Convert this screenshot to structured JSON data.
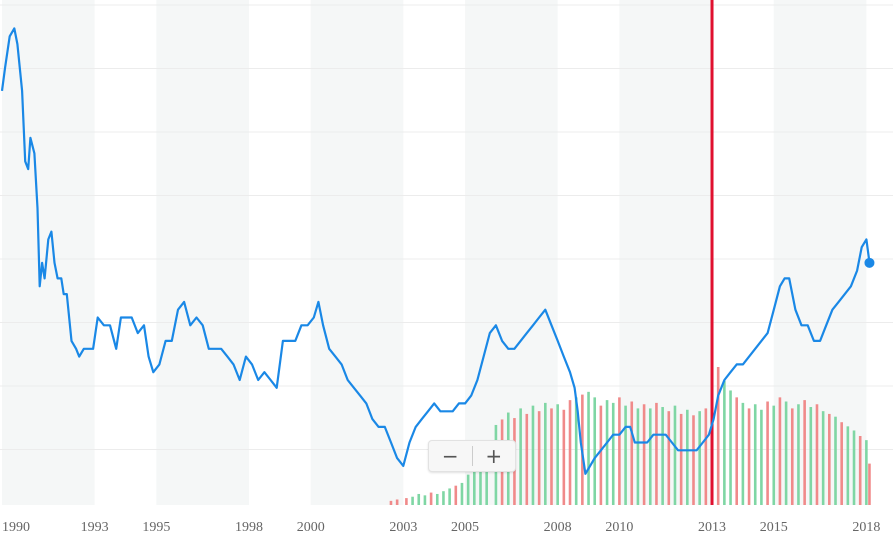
{
  "chart_data": {
    "type": "line",
    "x_ticks": [
      "1990",
      "1993",
      "1995",
      "1998",
      "2000",
      "2003",
      "2005",
      "2008",
      "2010",
      "2013",
      "2015",
      "2018"
    ],
    "series": [
      {
        "values": [
          [
            1990.0,
            81
          ],
          [
            1990.1,
            84
          ],
          [
            1990.25,
            88
          ],
          [
            1990.4,
            89
          ],
          [
            1990.5,
            87
          ],
          [
            1990.65,
            81
          ],
          [
            1990.75,
            72
          ],
          [
            1990.85,
            71
          ],
          [
            1990.92,
            75
          ],
          [
            1991.05,
            73
          ],
          [
            1991.15,
            66
          ],
          [
            1991.22,
            56
          ],
          [
            1991.3,
            59
          ],
          [
            1991.38,
            57
          ],
          [
            1991.5,
            62
          ],
          [
            1991.6,
            63
          ],
          [
            1991.7,
            59
          ],
          [
            1991.8,
            57
          ],
          [
            1991.92,
            57
          ],
          [
            1992.0,
            55
          ],
          [
            1992.1,
            55
          ],
          [
            1992.25,
            49
          ],
          [
            1992.4,
            48
          ],
          [
            1992.5,
            47
          ],
          [
            1992.65,
            48
          ],
          [
            1992.8,
            48
          ],
          [
            1992.95,
            48
          ],
          [
            1993.1,
            52
          ],
          [
            1993.3,
            51
          ],
          [
            1993.5,
            51
          ],
          [
            1993.7,
            48
          ],
          [
            1993.85,
            52
          ],
          [
            1994.0,
            52
          ],
          [
            1994.2,
            52
          ],
          [
            1994.4,
            50
          ],
          [
            1994.6,
            51
          ],
          [
            1994.75,
            47
          ],
          [
            1994.9,
            45
          ],
          [
            1995.1,
            46
          ],
          [
            1995.3,
            49
          ],
          [
            1995.5,
            49
          ],
          [
            1995.7,
            53
          ],
          [
            1995.9,
            54
          ],
          [
            1996.1,
            51
          ],
          [
            1996.3,
            52
          ],
          [
            1996.5,
            51
          ],
          [
            1996.7,
            48
          ],
          [
            1996.9,
            48
          ],
          [
            1997.1,
            48
          ],
          [
            1997.3,
            47
          ],
          [
            1997.5,
            46
          ],
          [
            1997.7,
            44
          ],
          [
            1997.9,
            47
          ],
          [
            1998.1,
            46
          ],
          [
            1998.3,
            44
          ],
          [
            1998.5,
            45
          ],
          [
            1998.7,
            44
          ],
          [
            1998.9,
            43
          ],
          [
            1999.1,
            49
          ],
          [
            1999.3,
            49
          ],
          [
            1999.5,
            49
          ],
          [
            1999.7,
            51
          ],
          [
            1999.9,
            51
          ],
          [
            2000.1,
            52
          ],
          [
            2000.25,
            54
          ],
          [
            2000.4,
            51
          ],
          [
            2000.6,
            48
          ],
          [
            2000.8,
            47
          ],
          [
            2001.0,
            46
          ],
          [
            2001.2,
            44
          ],
          [
            2001.4,
            43
          ],
          [
            2001.6,
            42
          ],
          [
            2001.8,
            41
          ],
          [
            2002.0,
            39
          ],
          [
            2002.2,
            38
          ],
          [
            2002.4,
            38
          ],
          [
            2002.6,
            36
          ],
          [
            2002.8,
            34
          ],
          [
            2003.0,
            33
          ],
          [
            2003.2,
            36
          ],
          [
            2003.4,
            38
          ],
          [
            2003.6,
            39
          ],
          [
            2003.8,
            40
          ],
          [
            2004.0,
            41
          ],
          [
            2004.2,
            40
          ],
          [
            2004.4,
            40
          ],
          [
            2004.6,
            40
          ],
          [
            2004.8,
            41
          ],
          [
            2005.0,
            41
          ],
          [
            2005.2,
            42
          ],
          [
            2005.4,
            44
          ],
          [
            2005.6,
            47
          ],
          [
            2005.8,
            50
          ],
          [
            2006.0,
            51
          ],
          [
            2006.2,
            49
          ],
          [
            2006.4,
            48
          ],
          [
            2006.6,
            48
          ],
          [
            2006.8,
            49
          ],
          [
            2007.0,
            50
          ],
          [
            2007.2,
            51
          ],
          [
            2007.4,
            52
          ],
          [
            2007.6,
            53
          ],
          [
            2007.8,
            51
          ],
          [
            2008.0,
            49
          ],
          [
            2008.2,
            47
          ],
          [
            2008.4,
            45
          ],
          [
            2008.55,
            43
          ],
          [
            2008.65,
            40
          ],
          [
            2008.75,
            36
          ],
          [
            2008.9,
            32
          ],
          [
            2009.05,
            33
          ],
          [
            2009.2,
            34
          ],
          [
            2009.4,
            35
          ],
          [
            2009.6,
            36
          ],
          [
            2009.8,
            37
          ],
          [
            2010.0,
            37
          ],
          [
            2010.2,
            38
          ],
          [
            2010.35,
            38
          ],
          [
            2010.5,
            36
          ],
          [
            2010.7,
            36
          ],
          [
            2010.9,
            36
          ],
          [
            2011.1,
            37
          ],
          [
            2011.3,
            37
          ],
          [
            2011.5,
            37
          ],
          [
            2011.7,
            36
          ],
          [
            2011.9,
            35
          ],
          [
            2012.1,
            35
          ],
          [
            2012.3,
            35
          ],
          [
            2012.5,
            35
          ],
          [
            2012.7,
            36
          ],
          [
            2012.9,
            37
          ],
          [
            2013.05,
            39
          ],
          [
            2013.2,
            42
          ],
          [
            2013.4,
            44
          ],
          [
            2013.6,
            45
          ],
          [
            2013.8,
            46
          ],
          [
            2014.0,
            46
          ],
          [
            2014.2,
            47
          ],
          [
            2014.4,
            48
          ],
          [
            2014.6,
            49
          ],
          [
            2014.8,
            50
          ],
          [
            2015.0,
            53
          ],
          [
            2015.2,
            56
          ],
          [
            2015.35,
            57
          ],
          [
            2015.5,
            57
          ],
          [
            2015.7,
            53
          ],
          [
            2015.9,
            51
          ],
          [
            2016.1,
            51
          ],
          [
            2016.3,
            49
          ],
          [
            2016.5,
            49
          ],
          [
            2016.7,
            51
          ],
          [
            2016.9,
            53
          ],
          [
            2017.1,
            54
          ],
          [
            2017.3,
            55
          ],
          [
            2017.5,
            56
          ],
          [
            2017.7,
            58
          ],
          [
            2017.85,
            61
          ],
          [
            2018.0,
            62
          ],
          [
            2018.1,
            59
          ]
        ],
        "color": "#1a88e6"
      }
    ],
    "volume": {
      "colors": {
        "up": "#7fd6a4",
        "down": "#f08a8a"
      },
      "bars": [
        [
          2002.6,
          0.03,
          "down"
        ],
        [
          2002.8,
          0.04,
          "down"
        ],
        [
          2003.1,
          0.05,
          "down"
        ],
        [
          2003.3,
          0.06,
          "up"
        ],
        [
          2003.5,
          0.08,
          "up"
        ],
        [
          2003.7,
          0.07,
          "up"
        ],
        [
          2003.9,
          0.09,
          "down"
        ],
        [
          2004.1,
          0.08,
          "up"
        ],
        [
          2004.3,
          0.1,
          "up"
        ],
        [
          2004.5,
          0.12,
          "up"
        ],
        [
          2004.7,
          0.14,
          "down"
        ],
        [
          2004.9,
          0.16,
          "up"
        ],
        [
          2005.1,
          0.22,
          "up"
        ],
        [
          2005.3,
          0.25,
          "up"
        ],
        [
          2005.5,
          0.3,
          "up"
        ],
        [
          2005.7,
          0.34,
          "up"
        ],
        [
          2006.0,
          0.58,
          "up"
        ],
        [
          2006.2,
          0.62,
          "down"
        ],
        [
          2006.4,
          0.67,
          "up"
        ],
        [
          2006.6,
          0.63,
          "down"
        ],
        [
          2006.8,
          0.7,
          "up"
        ],
        [
          2007.0,
          0.66,
          "down"
        ],
        [
          2007.2,
          0.72,
          "up"
        ],
        [
          2007.4,
          0.68,
          "down"
        ],
        [
          2007.6,
          0.74,
          "up"
        ],
        [
          2007.8,
          0.7,
          "down"
        ],
        [
          2008.0,
          0.73,
          "up"
        ],
        [
          2008.2,
          0.69,
          "down"
        ],
        [
          2008.4,
          0.76,
          "down"
        ],
        [
          2008.6,
          0.78,
          "up"
        ],
        [
          2008.8,
          0.8,
          "down"
        ],
        [
          2009.0,
          0.82,
          "up"
        ],
        [
          2009.2,
          0.78,
          "up"
        ],
        [
          2009.4,
          0.72,
          "down"
        ],
        [
          2009.6,
          0.76,
          "up"
        ],
        [
          2009.8,
          0.74,
          "up"
        ],
        [
          2010.0,
          0.78,
          "down"
        ],
        [
          2010.2,
          0.72,
          "up"
        ],
        [
          2010.4,
          0.75,
          "down"
        ],
        [
          2010.6,
          0.7,
          "up"
        ],
        [
          2010.8,
          0.73,
          "down"
        ],
        [
          2011.0,
          0.7,
          "up"
        ],
        [
          2011.2,
          0.74,
          "down"
        ],
        [
          2011.4,
          0.71,
          "up"
        ],
        [
          2011.6,
          0.68,
          "down"
        ],
        [
          2011.8,
          0.72,
          "up"
        ],
        [
          2012.0,
          0.66,
          "down"
        ],
        [
          2012.2,
          0.69,
          "up"
        ],
        [
          2012.4,
          0.65,
          "down"
        ],
        [
          2012.6,
          0.68,
          "up"
        ],
        [
          2012.8,
          0.7,
          "down"
        ],
        [
          2013.0,
          0.95,
          "down"
        ],
        [
          2013.2,
          1.0,
          "down"
        ],
        [
          2013.4,
          0.9,
          "up"
        ],
        [
          2013.6,
          0.83,
          "up"
        ],
        [
          2013.8,
          0.78,
          "down"
        ],
        [
          2014.0,
          0.74,
          "up"
        ],
        [
          2014.2,
          0.7,
          "down"
        ],
        [
          2014.4,
          0.73,
          "up"
        ],
        [
          2014.6,
          0.69,
          "up"
        ],
        [
          2014.8,
          0.75,
          "down"
        ],
        [
          2015.0,
          0.72,
          "up"
        ],
        [
          2015.2,
          0.78,
          "down"
        ],
        [
          2015.4,
          0.75,
          "up"
        ],
        [
          2015.6,
          0.7,
          "down"
        ],
        [
          2015.8,
          0.73,
          "up"
        ],
        [
          2016.0,
          0.76,
          "down"
        ],
        [
          2016.2,
          0.71,
          "up"
        ],
        [
          2016.4,
          0.73,
          "down"
        ],
        [
          2016.6,
          0.68,
          "up"
        ],
        [
          2016.8,
          0.66,
          "down"
        ],
        [
          2017.0,
          0.64,
          "up"
        ],
        [
          2017.2,
          0.6,
          "down"
        ],
        [
          2017.4,
          0.57,
          "up"
        ],
        [
          2017.6,
          0.54,
          "up"
        ],
        [
          2017.8,
          0.5,
          "down"
        ],
        [
          2018.0,
          0.47,
          "up"
        ],
        [
          2018.1,
          0.3,
          "down"
        ]
      ]
    },
    "marker_line": {
      "x": 2013.0,
      "color": "#e0102f"
    },
    "bands_color": "#f5f7f7",
    "grid": true
  },
  "zoom": {
    "minus_label": "−",
    "plus_label": "+"
  }
}
